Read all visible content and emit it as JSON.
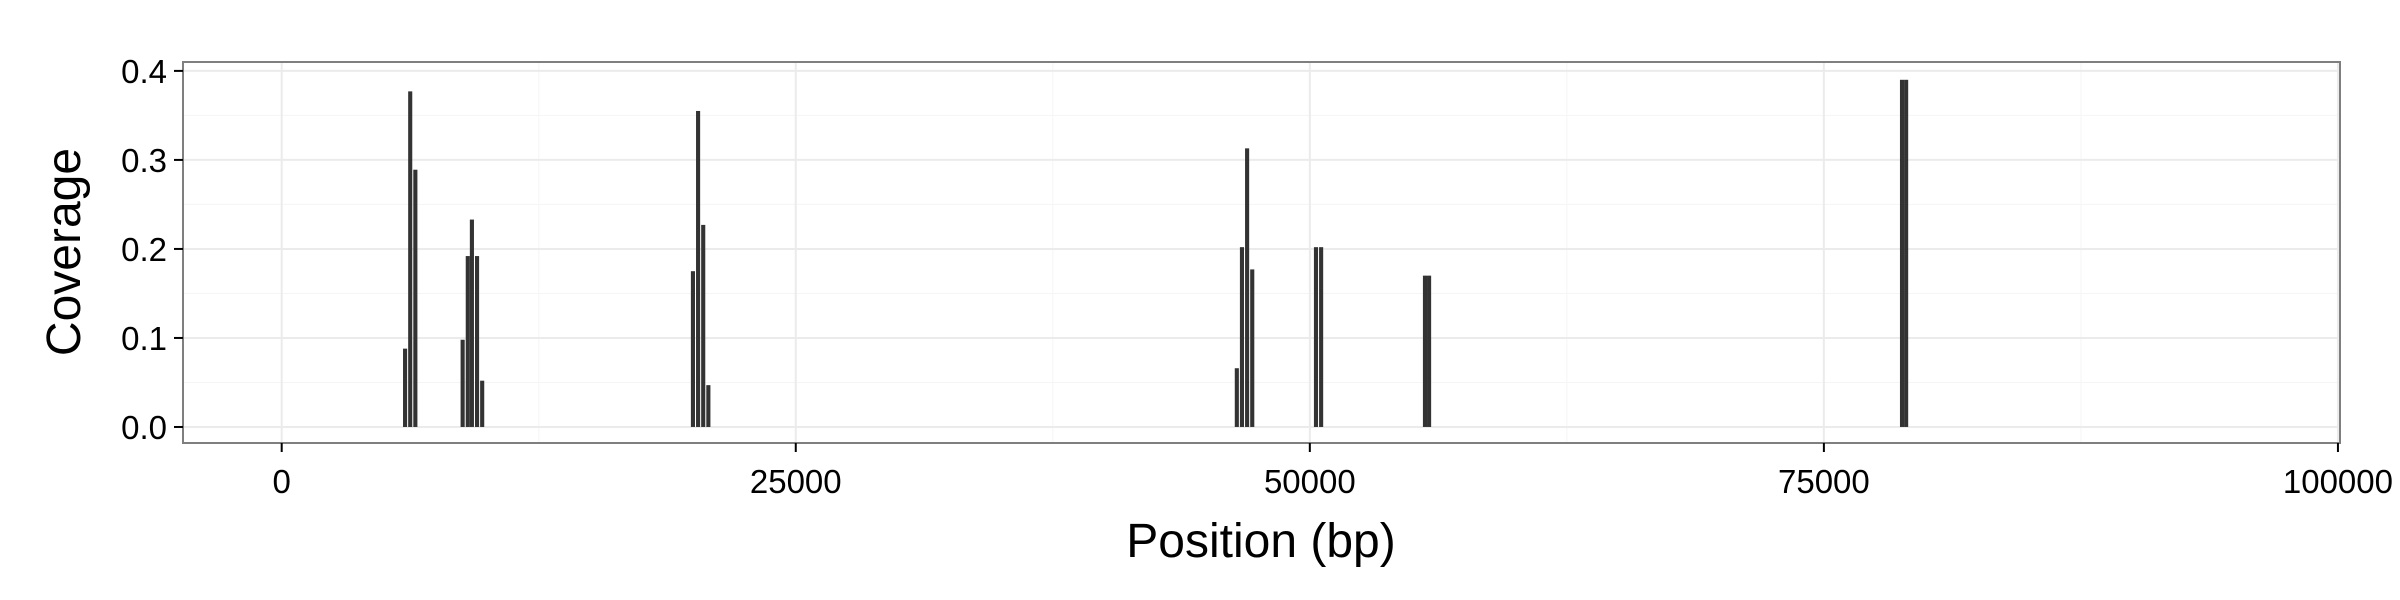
{
  "chart_data": {
    "type": "bar",
    "title": "",
    "xlabel": "Position (bp)",
    "ylabel": "Coverage",
    "xlim": [
      -4800,
      100100
    ],
    "ylim": [
      -0.018,
      0.41
    ],
    "x_ticks": [
      0,
      25000,
      50000,
      75000,
      100000
    ],
    "x_tick_labels": [
      "0",
      "25000",
      "50000",
      "75000",
      "100000"
    ],
    "y_ticks": [
      0.0,
      0.1,
      0.2,
      0.3,
      0.4
    ],
    "y_tick_labels": [
      "0.0",
      "0.1",
      "0.2",
      "0.3",
      "0.4"
    ],
    "grid": true,
    "legend": "none",
    "bar_color": "#333333",
    "background_color": "#ffffff",
    "grid_color": "#ebebeb",
    "panel_border_color": "#7f7f7f",
    "bar_width": 200,
    "bars": [
      {
        "x": 6000,
        "y": 0.088
      },
      {
        "x": 6250,
        "y": 0.377
      },
      {
        "x": 6500,
        "y": 0.289
      },
      {
        "x": 8800,
        "y": 0.098
      },
      {
        "x": 9050,
        "y": 0.192
      },
      {
        "x": 9250,
        "y": 0.233
      },
      {
        "x": 9500,
        "y": 0.192
      },
      {
        "x": 9750,
        "y": 0.052
      },
      {
        "x": 20000,
        "y": 0.175
      },
      {
        "x": 20250,
        "y": 0.355
      },
      {
        "x": 20500,
        "y": 0.227
      },
      {
        "x": 20750,
        "y": 0.047
      },
      {
        "x": 46450,
        "y": 0.066
      },
      {
        "x": 46700,
        "y": 0.202
      },
      {
        "x": 46950,
        "y": 0.313
      },
      {
        "x": 47200,
        "y": 0.177
      },
      {
        "x": 50300,
        "y": 0.202
      },
      {
        "x": 50550,
        "y": 0.202
      },
      {
        "x": 55600,
        "y": 0.17
      },
      {
        "x": 55800,
        "y": 0.17
      },
      {
        "x": 78800,
        "y": 0.39
      },
      {
        "x": 79000,
        "y": 0.39
      }
    ]
  }
}
